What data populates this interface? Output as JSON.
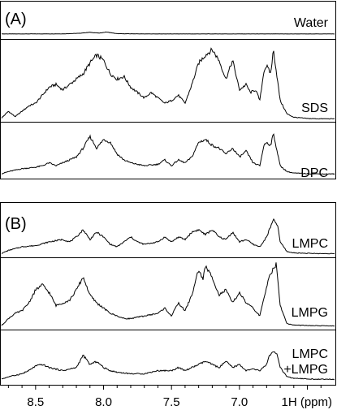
{
  "chart_data": [
    {
      "type": "line",
      "panel_label": "(A)",
      "x_unit": "ppm",
      "x_reversed": true,
      "xlim": [
        8.75,
        6.3
      ],
      "ylim": [
        0,
        3
      ],
      "grid": false,
      "legend": "none",
      "series": [
        {
          "name": "Water",
          "x": [
            8.75,
            8.6,
            8.3,
            8.18,
            8.1,
            8.03,
            7.98,
            7.9,
            7.7,
            7.3,
            7.0,
            6.7,
            6.3
          ],
          "y": [
            0.02,
            0.02,
            0.03,
            0.1,
            0.22,
            0.12,
            0.26,
            0.05,
            0.02,
            0.02,
            0.02,
            0.02,
            0.02
          ]
        },
        {
          "name": "SDS",
          "x": [
            8.75,
            8.7,
            8.65,
            8.6,
            8.55,
            8.5,
            8.45,
            8.4,
            8.35,
            8.3,
            8.25,
            8.2,
            8.15,
            8.1,
            8.05,
            8.0,
            7.95,
            7.9,
            7.85,
            7.8,
            7.75,
            7.7,
            7.65,
            7.6,
            7.55,
            7.5,
            7.45,
            7.4,
            7.35,
            7.3,
            7.25,
            7.2,
            7.15,
            7.1,
            7.05,
            7.0,
            6.95,
            6.92,
            6.88,
            6.85,
            6.82,
            6.8,
            6.77,
            6.75,
            6.7,
            6.65,
            6.6,
            6.5,
            6.4,
            6.3
          ],
          "y": [
            0.05,
            0.3,
            0.1,
            0.3,
            0.5,
            0.6,
            0.9,
            1.2,
            1.3,
            1.1,
            1.3,
            1.5,
            1.7,
            2.1,
            2.4,
            2.2,
            1.7,
            1.5,
            1.6,
            1.2,
            1.0,
            0.8,
            1.0,
            0.8,
            0.6,
            0.7,
            0.9,
            0.6,
            1.3,
            2.1,
            2.4,
            2.6,
            2.2,
            1.5,
            2.2,
            1.1,
            1.3,
            1.0,
            1.1,
            0.7,
            1.8,
            2.0,
            1.7,
            2.6,
            0.7,
            0.2,
            0.08,
            0.03,
            0.02,
            0.02
          ]
        },
        {
          "name": "DPC",
          "x": [
            8.75,
            8.7,
            8.6,
            8.5,
            8.45,
            8.4,
            8.35,
            8.3,
            8.25,
            8.2,
            8.15,
            8.1,
            8.05,
            8.0,
            7.95,
            7.9,
            7.85,
            7.8,
            7.7,
            7.6,
            7.55,
            7.5,
            7.45,
            7.4,
            7.35,
            7.3,
            7.25,
            7.2,
            7.15,
            7.1,
            7.05,
            7.0,
            6.95,
            6.9,
            6.85,
            6.82,
            6.8,
            6.77,
            6.75,
            6.7,
            6.65,
            6.6,
            6.5,
            6.4,
            6.3
          ],
          "y": [
            0.03,
            0.1,
            0.2,
            0.25,
            0.3,
            0.4,
            0.3,
            0.4,
            0.5,
            0.6,
            0.9,
            1.3,
            0.9,
            1.2,
            1.1,
            0.7,
            0.5,
            0.4,
            0.3,
            0.35,
            0.5,
            0.3,
            0.5,
            0.4,
            0.6,
            1.1,
            1.2,
            1.0,
            0.9,
            0.7,
            0.9,
            0.6,
            0.8,
            0.4,
            0.3,
            1.0,
            1.1,
            1.0,
            1.4,
            0.3,
            0.1,
            0.05,
            0.03,
            0.02,
            0.02
          ]
        }
      ]
    },
    {
      "type": "line",
      "panel_label": "(B)",
      "xlabel": "1H (ppm)",
      "x_unit": "ppm",
      "x_reversed": true,
      "xlim": [
        8.75,
        6.3
      ],
      "xticks": [
        8.5,
        8.0,
        7.5,
        7.0
      ],
      "xtick_labels": [
        "8.5",
        "8.0",
        "7.5",
        "7.0"
      ],
      "ylim": [
        0,
        3
      ],
      "grid": false,
      "legend": "none",
      "series": [
        {
          "name": "LMPC",
          "x": [
            8.75,
            8.7,
            8.6,
            8.5,
            8.4,
            8.3,
            8.25,
            8.2,
            8.15,
            8.1,
            8.05,
            8.0,
            7.95,
            7.9,
            7.85,
            7.8,
            7.75,
            7.7,
            7.6,
            7.55,
            7.5,
            7.45,
            7.4,
            7.35,
            7.3,
            7.25,
            7.2,
            7.15,
            7.1,
            7.05,
            7.0,
            6.95,
            6.9,
            6.85,
            6.8,
            6.78,
            6.75,
            6.72,
            6.7,
            6.65,
            6.6,
            6.5,
            6.4,
            6.3
          ],
          "y": [
            0.03,
            0.15,
            0.3,
            0.35,
            0.5,
            0.6,
            0.5,
            0.7,
            1.0,
            0.6,
            0.9,
            0.7,
            0.4,
            0.3,
            0.5,
            0.7,
            0.5,
            0.4,
            0.5,
            0.7,
            0.5,
            0.7,
            0.6,
            0.9,
            1.0,
            0.8,
            1.0,
            0.7,
            0.6,
            0.9,
            0.5,
            0.6,
            0.4,
            0.3,
            0.7,
            1.0,
            1.4,
            1.2,
            0.5,
            0.1,
            0.05,
            0.03,
            0.02,
            0.02
          ]
        },
        {
          "name": "LMPG",
          "x": [
            8.75,
            8.7,
            8.65,
            8.6,
            8.55,
            8.5,
            8.45,
            8.4,
            8.35,
            8.3,
            8.25,
            8.2,
            8.15,
            8.1,
            8.05,
            8.0,
            7.95,
            7.9,
            7.85,
            7.8,
            7.7,
            7.6,
            7.55,
            7.5,
            7.45,
            7.4,
            7.35,
            7.3,
            7.27,
            7.25,
            7.2,
            7.15,
            7.1,
            7.05,
            7.0,
            6.95,
            6.9,
            6.85,
            6.8,
            6.78,
            6.75,
            6.73,
            6.7,
            6.65,
            6.6,
            6.5,
            6.4,
            6.3
          ],
          "y": [
            0.03,
            0.3,
            0.5,
            0.6,
            0.9,
            1.4,
            1.6,
            1.3,
            0.8,
            0.9,
            1.0,
            1.4,
            1.9,
            1.2,
            0.9,
            0.7,
            0.5,
            0.4,
            0.3,
            0.3,
            0.4,
            0.5,
            0.7,
            0.4,
            0.9,
            0.6,
            1.2,
            2.2,
            1.8,
            2.3,
            1.9,
            1.2,
            1.4,
            0.9,
            1.3,
            0.9,
            0.7,
            0.4,
            1.5,
            2.0,
            2.2,
            2.4,
            0.8,
            0.1,
            0.05,
            0.03,
            0.02,
            0.02
          ]
        },
        {
          "name": "LMPC +LMPG",
          "x": [
            8.75,
            8.7,
            8.6,
            8.55,
            8.5,
            8.45,
            8.4,
            8.3,
            8.2,
            8.15,
            8.1,
            8.05,
            8.0,
            7.95,
            7.9,
            7.8,
            7.7,
            7.6,
            7.5,
            7.45,
            7.4,
            7.35,
            7.3,
            7.25,
            7.2,
            7.15,
            7.1,
            7.05,
            7.0,
            6.95,
            6.9,
            6.85,
            6.8,
            6.78,
            6.75,
            6.72,
            6.7,
            6.65,
            6.6,
            6.5,
            6.4,
            6.3
          ],
          "y": [
            0.03,
            0.1,
            0.2,
            0.3,
            0.45,
            0.5,
            0.4,
            0.3,
            0.4,
            0.8,
            0.5,
            0.6,
            0.4,
            0.3,
            0.25,
            0.2,
            0.2,
            0.3,
            0.3,
            0.4,
            0.3,
            0.4,
            0.5,
            0.6,
            0.5,
            0.4,
            0.6,
            0.4,
            0.5,
            0.3,
            0.35,
            0.3,
            0.5,
            0.8,
            0.9,
            0.8,
            0.4,
            0.1,
            0.05,
            0.03,
            0.02,
            0.02
          ]
        }
      ]
    }
  ]
}
